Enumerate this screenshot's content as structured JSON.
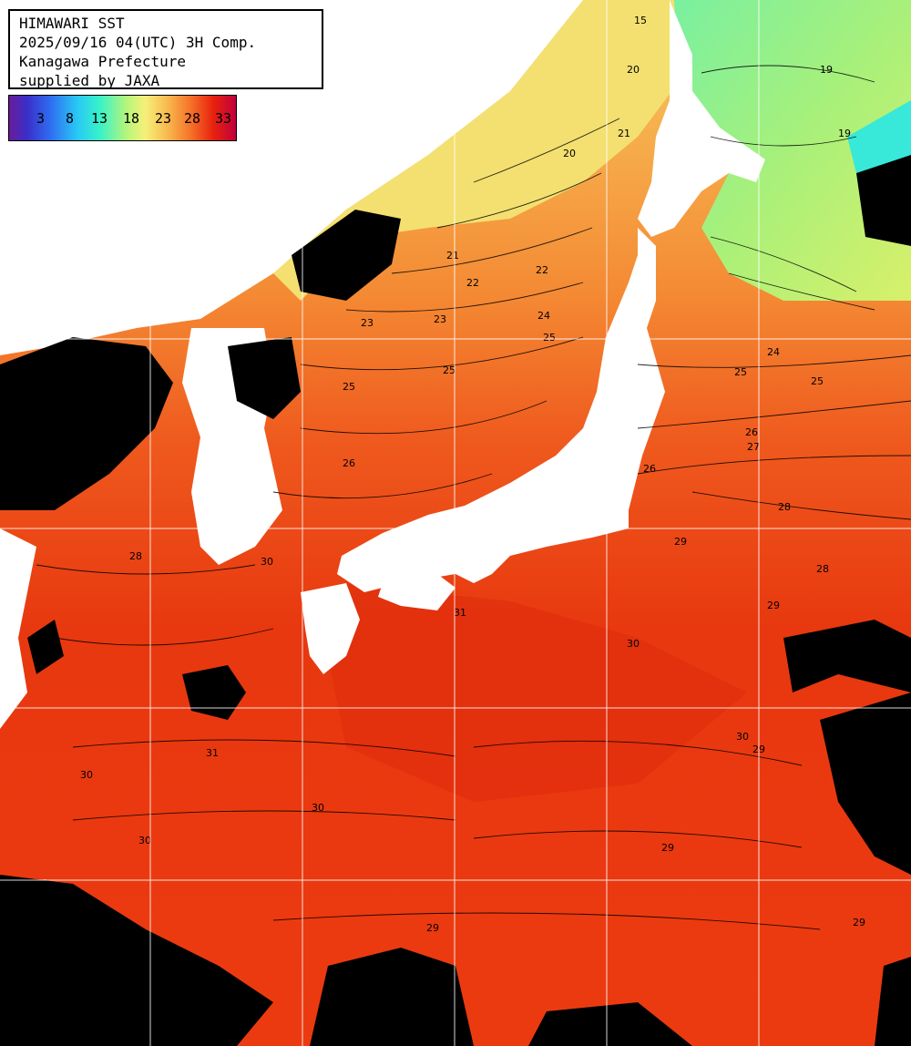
{
  "header": {
    "line1": "HIMAWARI SST",
    "line2": "2025/09/16 04(UTC) 3H Comp.",
    "line3": "Kanagawa Prefecture",
    "line4": "supplied by JAXA"
  },
  "scale": {
    "labels": [
      "3",
      "8",
      "13",
      "18",
      "23",
      "28",
      "33"
    ],
    "colors": [
      "#6a1b9a",
      "#2f6cf0",
      "#29c8f5",
      "#b8f57a",
      "#f8b84e",
      "#f5722a",
      "#c0003c"
    ]
  },
  "contours": {
    "labels": [
      "15",
      "19",
      "20",
      "21",
      "22",
      "23",
      "24",
      "25",
      "26",
      "27",
      "28",
      "29",
      "30",
      "31"
    ]
  }
}
